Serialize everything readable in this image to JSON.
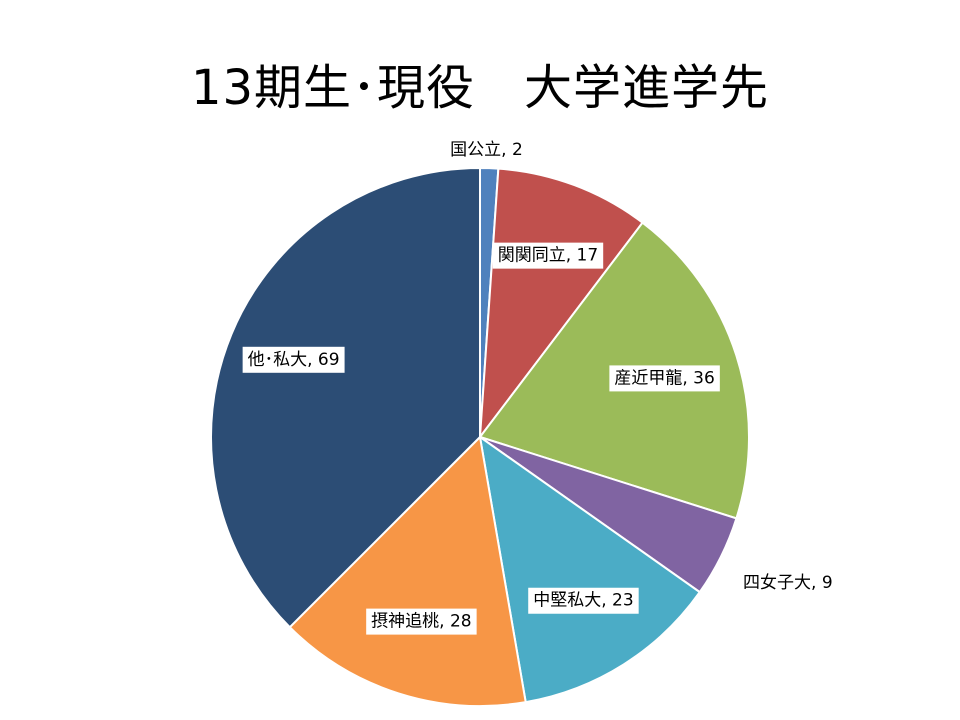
{
  "chart_data": {
    "type": "pie",
    "title": "13期生･現役　大学進学先",
    "slices": [
      {
        "label": "国公立",
        "value": 2,
        "color": "#4F81BD"
      },
      {
        "label": "関関同立",
        "value": 17,
        "color": "#C0504D"
      },
      {
        "label": "産近甲龍",
        "value": 36,
        "color": "#9BBB59"
      },
      {
        "label": "四女子大",
        "value": 9,
        "color": "#8064A2"
      },
      {
        "label": "中堅私大",
        "value": 23,
        "color": "#4BACC6"
      },
      {
        "label": "摂神追桃",
        "value": 28,
        "color": "#F79646"
      },
      {
        "label": "他･私大",
        "value": 69,
        "color": "#2C4D75"
      }
    ],
    "start_angle_deg": 0,
    "direction": "clockwise",
    "data_labels": "category, value",
    "legend": "none"
  }
}
